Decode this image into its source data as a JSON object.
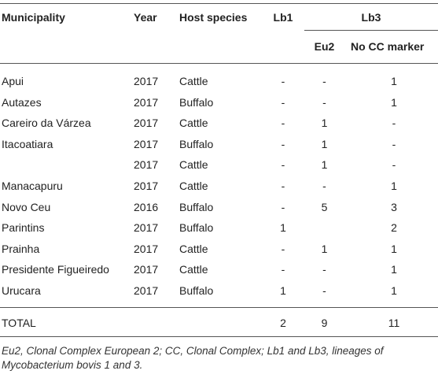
{
  "table": {
    "headers": {
      "municipality": "Municipality",
      "year": "Year",
      "host_species": "Host species",
      "lb1": "Lb1",
      "lb3": "Lb3",
      "eu2": "Eu2",
      "no_cc_marker": "No CC marker"
    },
    "rows": [
      {
        "municipality": "Apui",
        "year": "2017",
        "host": "Cattle",
        "lb1": "-",
        "eu2": "-",
        "nocc": "1"
      },
      {
        "municipality": "Autazes",
        "year": "2017",
        "host": "Buffalo",
        "lb1": "-",
        "eu2": "-",
        "nocc": "1"
      },
      {
        "municipality": "Careiro da Várzea",
        "year": "2017",
        "host": "Cattle",
        "lb1": "-",
        "eu2": "1",
        "nocc": "-"
      },
      {
        "municipality": "Itacoatiara",
        "year": "2017",
        "host": "Buffalo",
        "lb1": "-",
        "eu2": "1",
        "nocc": "-"
      },
      {
        "municipality": "",
        "year": "2017",
        "host": "Cattle",
        "lb1": "-",
        "eu2": "1",
        "nocc": "-"
      },
      {
        "municipality": "Manacapuru",
        "year": "2017",
        "host": "Cattle",
        "lb1": "-",
        "eu2": "-",
        "nocc": "1"
      },
      {
        "municipality": "Novo Ceu",
        "year": "2016",
        "host": "Buffalo",
        "lb1": "-",
        "eu2": "5",
        "nocc": "3"
      },
      {
        "municipality": "Parintins",
        "year": "2017",
        "host": "Buffalo",
        "lb1": "1",
        "eu2": "",
        "nocc": "2"
      },
      {
        "municipality": "Prainha",
        "year": "2017",
        "host": "Cattle",
        "lb1": "-",
        "eu2": "1",
        "nocc": "1"
      },
      {
        "municipality": "Presidente Figueiredo",
        "year": "2017",
        "host": "Cattle",
        "lb1": "-",
        "eu2": "-",
        "nocc": "1"
      },
      {
        "municipality": "Urucara",
        "year": "2017",
        "host": "Buffalo",
        "lb1": "1",
        "eu2": "-",
        "nocc": "1"
      }
    ],
    "total": {
      "label": "TOTAL",
      "lb1": "2",
      "eu2": "9",
      "nocc": "11"
    }
  },
  "footnote": "Eu2, Clonal Complex European 2; CC, Clonal Complex; Lb1 and Lb3, lineages of Mycobacterium bovis 1 and 3."
}
